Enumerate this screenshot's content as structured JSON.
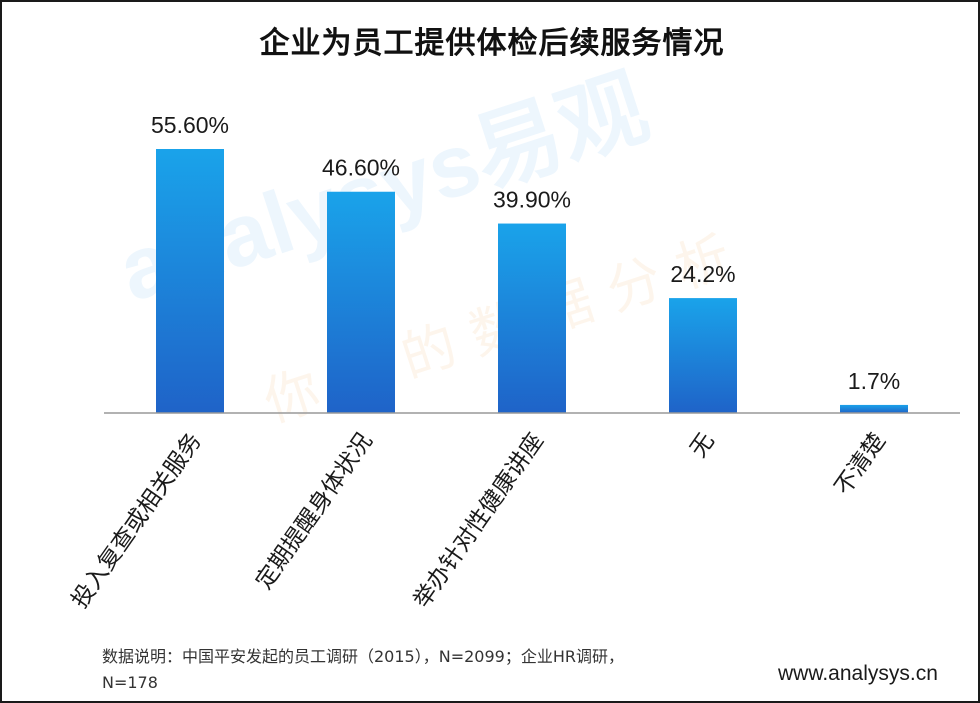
{
  "chart_data": {
    "type": "bar",
    "title": "企业为员工提供体检后续服务情况",
    "categories": [
      "投入复查或相关服务",
      "定期提醒身体状况",
      "举办针对性健康讲座",
      "无",
      "不清楚"
    ],
    "values": [
      55.6,
      46.6,
      39.9,
      24.2,
      1.7
    ],
    "value_labels": [
      "55.60%",
      "46.60%",
      "39.90%",
      "24.2%",
      "1.7%"
    ],
    "xlabel": "",
    "ylabel": "",
    "ylim": [
      0,
      55.6
    ],
    "grid": false,
    "legend": "none"
  },
  "colors": {
    "bar_top": "#1aa3ea",
    "bar_bottom": "#1f63c8",
    "baseline": "#999999"
  },
  "source_note": "数据说明：中国平安发起的员工调研（2015），N=2099；企业HR调研，N=178",
  "website": "www.analysys.cn",
  "watermark": {
    "brand": "analysys易观",
    "slogan": "你要的数据分析"
  }
}
